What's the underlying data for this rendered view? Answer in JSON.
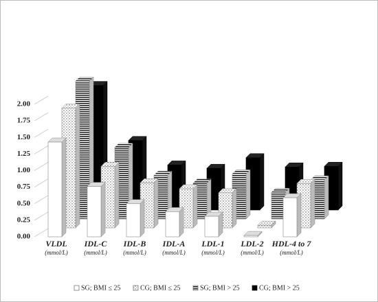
{
  "chart_data": {
    "type": "bar3d",
    "categories": [
      "VLDL",
      "IDL-C",
      "IDL-B",
      "IDL-A",
      "LDL-1",
      "LDL-2",
      "HDL-4 to 7"
    ],
    "category_sublabel": "(mmol/L)",
    "series": [
      {
        "name": "SG; BMI ≤ 25",
        "color": "#ffffff",
        "pattern": "solid",
        "values": [
          1.43,
          0.76,
          0.5,
          0.38,
          0.31,
          0.02,
          0.59
        ]
      },
      {
        "name": "CG; BMI ≤ 25",
        "color": "#ffffff",
        "pattern": "dots",
        "values": [
          1.81,
          0.93,
          0.68,
          0.59,
          0.53,
          0.04,
          0.67
        ]
      },
      {
        "name": "SG; BMI > 25",
        "color": "#ffffff",
        "pattern": "stripes",
        "values": [
          2.08,
          1.08,
          0.66,
          0.54,
          0.68,
          0.4,
          0.59
        ]
      },
      {
        "name": "CG; BMI > 25",
        "color": "#000000",
        "pattern": "solid",
        "values": [
          1.88,
          1.05,
          0.68,
          0.63,
          0.79,
          0.65,
          0.66
        ]
      }
    ],
    "ylim": [
      0,
      2
    ],
    "yticks": [
      {
        "value": 0,
        "label": "0.00"
      },
      0.25,
      {
        "value": 0.5,
        "label": "0.50"
      },
      0.75,
      {
        "value": 1,
        "label": "1.00"
      },
      1.25,
      {
        "value": 1.5,
        "label": "1.50"
      },
      1.75,
      {
        "value": 2,
        "label": "2.00"
      }
    ]
  }
}
